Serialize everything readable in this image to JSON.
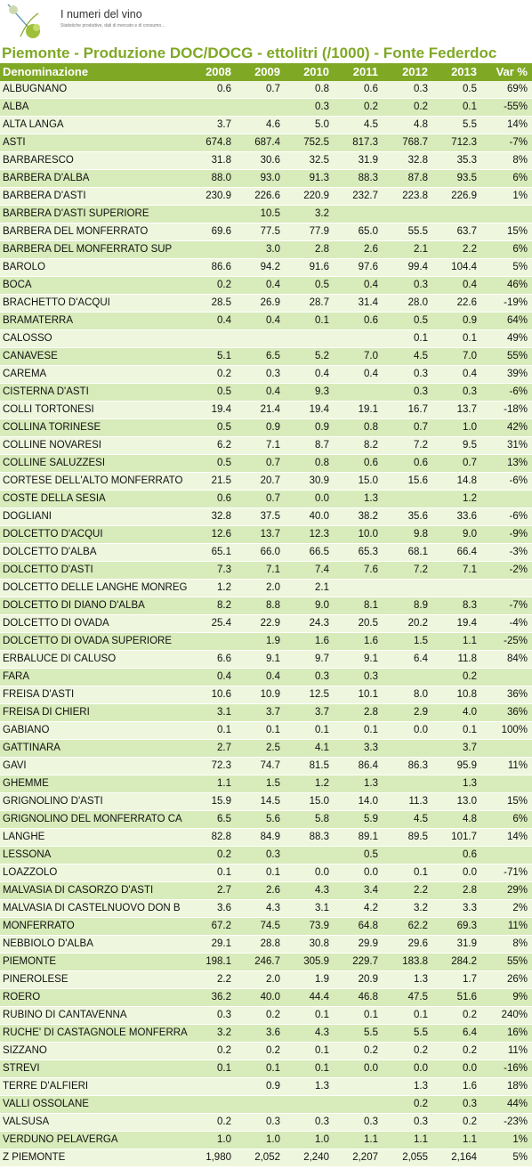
{
  "brand": {
    "name": "I numeri del vino",
    "tagline": "Statistiche produttive, dati di mercato e di consumo..."
  },
  "title": "Piemonte - Produzione DOC/DOCG - ettolitri (/1000) - Fonte Federdoc",
  "colors": {
    "accent": "#7fa825",
    "row_light": "#eef6dd",
    "row_dark": "#d8ebba"
  },
  "table": {
    "headers": [
      "Denominazione",
      "2008",
      "2009",
      "2010",
      "2011",
      "2012",
      "2013",
      "Var %"
    ],
    "rows": [
      [
        "ALBUGNANO",
        "0.6",
        "0.7",
        "0.8",
        "0.6",
        "0.3",
        "0.5",
        "69%"
      ],
      [
        "ALBA",
        "",
        "",
        "0.3",
        "0.2",
        "0.2",
        "0.1",
        "-55%"
      ],
      [
        "ALTA LANGA",
        "3.7",
        "4.6",
        "5.0",
        "4.5",
        "4.8",
        "5.5",
        "14%"
      ],
      [
        "ASTI",
        "674.8",
        "687.4",
        "752.5",
        "817.3",
        "768.7",
        "712.3",
        "-7%"
      ],
      [
        "BARBARESCO",
        "31.8",
        "30.6",
        "32.5",
        "31.9",
        "32.8",
        "35.3",
        "8%"
      ],
      [
        "BARBERA D'ALBA",
        "88.0",
        "93.0",
        "91.3",
        "88.3",
        "87.8",
        "93.5",
        "6%"
      ],
      [
        "BARBERA D'ASTI",
        "230.9",
        "226.6",
        "220.9",
        "232.7",
        "223.8",
        "226.9",
        "1%"
      ],
      [
        "BARBERA D'ASTI SUPERIORE",
        "",
        "10.5",
        "3.2",
        "",
        "",
        "",
        ""
      ],
      [
        "BARBERA DEL MONFERRATO",
        "69.6",
        "77.5",
        "77.9",
        "65.0",
        "55.5",
        "63.7",
        "15%"
      ],
      [
        "BARBERA DEL MONFERRATO SUP",
        "",
        "3.0",
        "2.8",
        "2.6",
        "2.1",
        "2.2",
        "6%"
      ],
      [
        "BAROLO",
        "86.6",
        "94.2",
        "91.6",
        "97.6",
        "99.4",
        "104.4",
        "5%"
      ],
      [
        "BOCA",
        "0.2",
        "0.4",
        "0.5",
        "0.4",
        "0.3",
        "0.4",
        "46%"
      ],
      [
        "BRACHETTO D'ACQUI",
        "28.5",
        "26.9",
        "28.7",
        "31.4",
        "28.0",
        "22.6",
        "-19%"
      ],
      [
        "BRAMATERRA",
        "0.4",
        "0.4",
        "0.1",
        "0.6",
        "0.5",
        "0.9",
        "64%"
      ],
      [
        "CALOSSO",
        "",
        "",
        "",
        "",
        "0.1",
        "0.1",
        "49%"
      ],
      [
        "CANAVESE",
        "5.1",
        "6.5",
        "5.2",
        "7.0",
        "4.5",
        "7.0",
        "55%"
      ],
      [
        "CAREMA",
        "0.2",
        "0.3",
        "0.4",
        "0.4",
        "0.3",
        "0.4",
        "39%"
      ],
      [
        "CISTERNA D'ASTI",
        "0.5",
        "0.4",
        "9.3",
        "",
        "0.3",
        "0.3",
        "-6%"
      ],
      [
        "COLLI TORTONESI",
        "19.4",
        "21.4",
        "19.4",
        "19.1",
        "16.7",
        "13.7",
        "-18%"
      ],
      [
        "COLLINA TORINESE",
        "0.5",
        "0.9",
        "0.9",
        "0.8",
        "0.7",
        "1.0",
        "42%"
      ],
      [
        "COLLINE NOVARESI",
        "6.2",
        "7.1",
        "8.7",
        "8.2",
        "7.2",
        "9.5",
        "31%"
      ],
      [
        "COLLINE SALUZZESI",
        "0.5",
        "0.7",
        "0.8",
        "0.6",
        "0.6",
        "0.7",
        "13%"
      ],
      [
        "CORTESE DELL'ALTO MONFERRATO",
        "21.5",
        "20.7",
        "30.9",
        "15.0",
        "15.6",
        "14.8",
        "-6%"
      ],
      [
        "COSTE DELLA SESIA",
        "0.6",
        "0.7",
        "0.0",
        "1.3",
        "",
        "1.2",
        ""
      ],
      [
        "DOGLIANI",
        "32.8",
        "37.5",
        "40.0",
        "38.2",
        "35.6",
        "33.6",
        "-6%"
      ],
      [
        "DOLCETTO D'ACQUI",
        "12.6",
        "13.7",
        "12.3",
        "10.0",
        "9.8",
        "9.0",
        "-9%"
      ],
      [
        "DOLCETTO D'ALBA",
        "65.1",
        "66.0",
        "66.5",
        "65.3",
        "68.1",
        "66.4",
        "-3%"
      ],
      [
        "DOLCETTO D'ASTI",
        "7.3",
        "7.1",
        "7.4",
        "7.6",
        "7.2",
        "7.1",
        "-2%"
      ],
      [
        "DOLCETTO DELLE LANGHE MONREG",
        "1.2",
        "2.0",
        "2.1",
        "",
        "",
        "",
        ""
      ],
      [
        "DOLCETTO DI DIANO D'ALBA",
        "8.2",
        "8.8",
        "9.0",
        "8.1",
        "8.9",
        "8.3",
        "-7%"
      ],
      [
        "DOLCETTO DI OVADA",
        "25.4",
        "22.9",
        "24.3",
        "20.5",
        "20.2",
        "19.4",
        "-4%"
      ],
      [
        "DOLCETTO DI OVADA SUPERIORE",
        "",
        "1.9",
        "1.6",
        "1.6",
        "1.5",
        "1.1",
        "-25%"
      ],
      [
        "ERBALUCE DI CALUSO",
        "6.6",
        "9.1",
        "9.7",
        "9.1",
        "6.4",
        "11.8",
        "84%"
      ],
      [
        "FARA",
        "0.4",
        "0.4",
        "0.3",
        "0.3",
        "",
        "0.2",
        ""
      ],
      [
        "FREISA D'ASTI",
        "10.6",
        "10.9",
        "12.5",
        "10.1",
        "8.0",
        "10.8",
        "36%"
      ],
      [
        "FREISA DI CHIERI",
        "3.1",
        "3.7",
        "3.7",
        "2.8",
        "2.9",
        "4.0",
        "36%"
      ],
      [
        "GABIANO",
        "0.1",
        "0.1",
        "0.1",
        "0.1",
        "0.0",
        "0.1",
        "100%"
      ],
      [
        "GATTINARA",
        "2.7",
        "2.5",
        "4.1",
        "3.3",
        "",
        "3.7",
        ""
      ],
      [
        "GAVI",
        "72.3",
        "74.7",
        "81.5",
        "86.4",
        "86.3",
        "95.9",
        "11%"
      ],
      [
        "GHEMME",
        "1.1",
        "1.5",
        "1.2",
        "1.3",
        "",
        "1.3",
        ""
      ],
      [
        "GRIGNOLINO D'ASTI",
        "15.9",
        "14.5",
        "15.0",
        "14.0",
        "11.3",
        "13.0",
        "15%"
      ],
      [
        "GRIGNOLINO DEL MONFERRATO CA",
        "6.5",
        "5.6",
        "5.8",
        "5.9",
        "4.5",
        "4.8",
        "6%"
      ],
      [
        "LANGHE",
        "82.8",
        "84.9",
        "88.3",
        "89.1",
        "89.5",
        "101.7",
        "14%"
      ],
      [
        "LESSONA",
        "0.2",
        "0.3",
        "",
        "0.5",
        "",
        "0.6",
        ""
      ],
      [
        "LOAZZOLO",
        "0.1",
        "0.1",
        "0.0",
        "0.0",
        "0.1",
        "0.0",
        "-71%"
      ],
      [
        "MALVASIA DI CASORZO D'ASTI",
        "2.7",
        "2.6",
        "4.3",
        "3.4",
        "2.2",
        "2.8",
        "29%"
      ],
      [
        "MALVASIA DI CASTELNUOVO DON B",
        "3.6",
        "4.3",
        "3.1",
        "4.2",
        "3.2",
        "3.3",
        "2%"
      ],
      [
        "MONFERRATO",
        "67.2",
        "74.5",
        "73.9",
        "64.8",
        "62.2",
        "69.3",
        "11%"
      ],
      [
        "NEBBIOLO D'ALBA",
        "29.1",
        "28.8",
        "30.8",
        "29.9",
        "29.6",
        "31.9",
        "8%"
      ],
      [
        "PIEMONTE",
        "198.1",
        "246.7",
        "305.9",
        "229.7",
        "183.8",
        "284.2",
        "55%"
      ],
      [
        "PINEROLESE",
        "2.2",
        "2.0",
        "1.9",
        "20.9",
        "1.3",
        "1.7",
        "26%"
      ],
      [
        "ROERO",
        "36.2",
        "40.0",
        "44.4",
        "46.8",
        "47.5",
        "51.6",
        "9%"
      ],
      [
        "RUBINO DI CANTAVENNA",
        "0.3",
        "0.2",
        "0.1",
        "0.1",
        "0.1",
        "0.2",
        "240%"
      ],
      [
        "RUCHE' DI CASTAGNOLE MONFERRA",
        "3.2",
        "3.6",
        "4.3",
        "5.5",
        "5.5",
        "6.4",
        "16%"
      ],
      [
        "SIZZANO",
        "0.2",
        "0.2",
        "0.1",
        "0.2",
        "0.2",
        "0.2",
        "11%"
      ],
      [
        "STREVI",
        "0.1",
        "0.1",
        "0.1",
        "0.0",
        "0.0",
        "0.0",
        "-16%"
      ],
      [
        "TERRE D'ALFIERI",
        "",
        "0.9",
        "1.3",
        "",
        "1.3",
        "1.6",
        "18%"
      ],
      [
        "VALLI OSSOLANE",
        "",
        "",
        "",
        "",
        "0.2",
        "0.3",
        "44%"
      ],
      [
        "VALSUSA",
        "0.2",
        "0.3",
        "0.3",
        "0.3",
        "0.3",
        "0.2",
        "-23%"
      ],
      [
        "VERDUNO PELAVERGA",
        "1.0",
        "1.0",
        "1.0",
        "1.1",
        "1.1",
        "1.1",
        "1%"
      ],
      [
        "Z PIEMONTE",
        "1,980",
        "2,052",
        "2,240",
        "2,207",
        "2,055",
        "2,164",
        "5%"
      ]
    ]
  }
}
